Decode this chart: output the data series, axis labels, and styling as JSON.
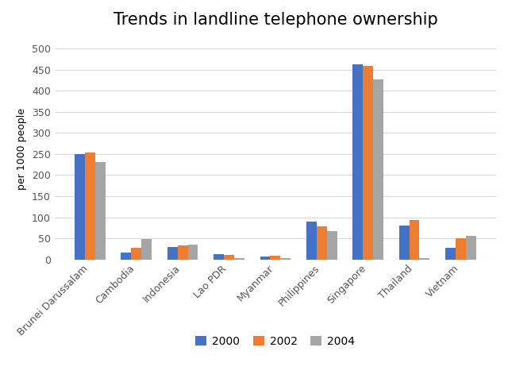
{
  "title": "Trends in landline telephone ownership",
  "ylabel": "per 1000 people",
  "categories": [
    "Brunei Darussalam",
    "Cambodia",
    "Indonesia",
    "Lao PDR",
    "Myanmar",
    "Philippines",
    "Singapore",
    "Thailand",
    "Vietnam"
  ],
  "series": {
    "2000": [
      250,
      17,
      30,
      13,
      7,
      89,
      462,
      80,
      28
    ],
    "2002": [
      253,
      27,
      33,
      10,
      9,
      79,
      458,
      93,
      50
    ],
    "2004": [
      230,
      49,
      35,
      3,
      3,
      68,
      427,
      4,
      55
    ]
  },
  "colors": {
    "2000": "#4472C4",
    "2002": "#ED7D31",
    "2004": "#A5A5A5"
  },
  "ylim": [
    0,
    525
  ],
  "yticks": [
    0,
    50,
    100,
    150,
    200,
    250,
    300,
    350,
    400,
    450,
    500
  ],
  "legend_labels": [
    "2000",
    "2002",
    "2004"
  ],
  "bar_width": 0.22,
  "background_color": "#FFFFFF",
  "grid_color": "#D9D9D9",
  "title_fontsize": 15,
  "label_fontsize": 9,
  "tick_fontsize": 9,
  "legend_fontsize": 10
}
